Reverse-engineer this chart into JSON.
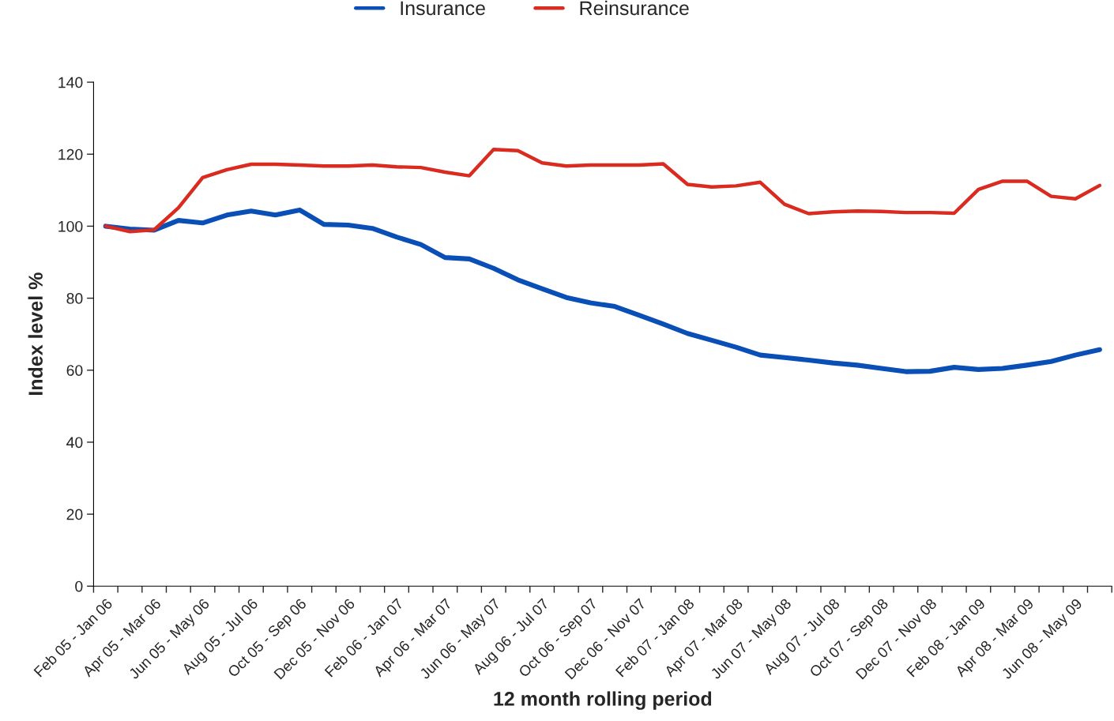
{
  "chart_data": {
    "type": "line",
    "xlabel": "12 month rolling period",
    "ylabel": "Index level %",
    "categories": [
      "Feb 05 - Jan 06",
      null,
      "Apr 05 - Mar 06",
      null,
      "Jun 05 - May 06",
      null,
      "Aug 05 - Jul 06",
      null,
      "Oct 05 - Sep 06",
      null,
      "Dec 05 - Nov 06",
      null,
      "Feb 06 - Jan 07",
      null,
      "Apr 06 - Mar 07",
      null,
      "Jun 06 - May 07",
      null,
      "Aug 06 - Jul 07",
      null,
      "Oct 06 - Sep 07",
      null,
      "Dec 06 - Nov 07",
      null,
      "Feb 07 - Jan 08",
      null,
      "Apr 07 - Mar 08",
      null,
      "Jun 07 - May 08",
      null,
      "Aug 07 - Jul 08",
      null,
      "Oct 07 - Sep 08",
      null,
      "Dec 07 - Nov 08",
      null,
      "Feb 08 - Jan 09",
      null,
      "Apr 08 - Mar 09",
      null,
      "Jun 08 - May 09",
      null
    ],
    "series": [
      {
        "name": "Insurance",
        "color": "#0a4fb5",
        "values": [
          100,
          99.2,
          98.9,
          101.6,
          100.9,
          103.1,
          104.2,
          103.1,
          104.5,
          100.5,
          100.3,
          99.4,
          97,
          94.9,
          91.3,
          90.9,
          88.3,
          85.1,
          82.6,
          80.2,
          78.7,
          77.7,
          75.3,
          72.8,
          70.2,
          68.3,
          66.4,
          64.2,
          63.5,
          62.8,
          62,
          61.4,
          60.5,
          59.6,
          59.7,
          60.8,
          60.2,
          60.5,
          61.4,
          62.4,
          64.2,
          65.7
        ]
      },
      {
        "name": "Reinsurance",
        "color": "#d92b20",
        "values": [
          100,
          98.5,
          99,
          105.1,
          113.5,
          115.7,
          117.2,
          117.2,
          117,
          116.7,
          116.7,
          117,
          116.5,
          116.3,
          115,
          114,
          121.3,
          121,
          117.6,
          116.7,
          117,
          117,
          117,
          117.3,
          111.6,
          110.9,
          111.2,
          112.2,
          106.1,
          103.5,
          104,
          104.2,
          104.1,
          103.8,
          103.8,
          103.6,
          110.2,
          112.5,
          112.5,
          108.3,
          107.6,
          111.3
        ]
      }
    ],
    "ylim": [
      0,
      140
    ],
    "yticks": [
      0,
      20,
      40,
      60,
      80,
      100,
      120,
      140
    ],
    "grid": false,
    "legend": "top",
    "marker": "none",
    "line_style": "solid"
  }
}
